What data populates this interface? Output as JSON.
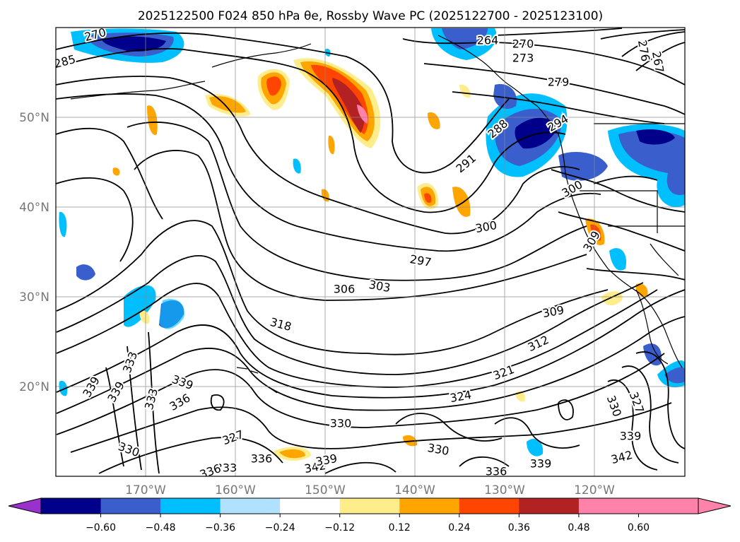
{
  "title": "2025122500 F024 850 hPa θe, Rossby Wave PC (2025122700 - 2025123100)",
  "lat_labels": [
    "50°N",
    "40°N",
    "30°N",
    "20°N"
  ],
  "lon_labels": [
    "170°W",
    "160°W",
    "150°W",
    "140°W",
    "130°W",
    "120°W"
  ],
  "colorbar": {
    "ticks": [
      "−0.60",
      "−0.48",
      "−0.36",
      "−0.24",
      "−0.12",
      "0.12",
      "0.24",
      "0.36",
      "0.48",
      "0.60"
    ],
    "colors": [
      "#9932cc",
      "#00008b",
      "#3a5fcd",
      "#00bfff",
      "#b0e2ff",
      "#ffffff",
      "#ffec8b",
      "#ffa500",
      "#ff4500",
      "#b22222",
      "#ff82ab",
      "#ff82ab"
    ]
  },
  "contour_labels": [
    "270",
    "285",
    "264",
    "270",
    "273",
    "279",
    "276",
    "267",
    "288",
    "291",
    "294",
    "300",
    "300",
    "309",
    "297",
    "306",
    "303",
    "318",
    "309",
    "312",
    "321",
    "324",
    "330",
    "333",
    "339",
    "339",
    "333",
    "336",
    "339",
    "327",
    "330",
    "336",
    "333",
    "336",
    "342",
    "339",
    "330",
    "336",
    "339",
    "342",
    "339",
    "330",
    "327"
  ],
  "colors": {
    "neg_strong": "#00008b",
    "neg_mid": "#3a5fcd",
    "neg_weak": "#00bfff",
    "pos_weak": "#ffa500",
    "pos_mid": "#ff4500",
    "pos_strong": "#b22222",
    "pos_max": "#ff82ab"
  }
}
